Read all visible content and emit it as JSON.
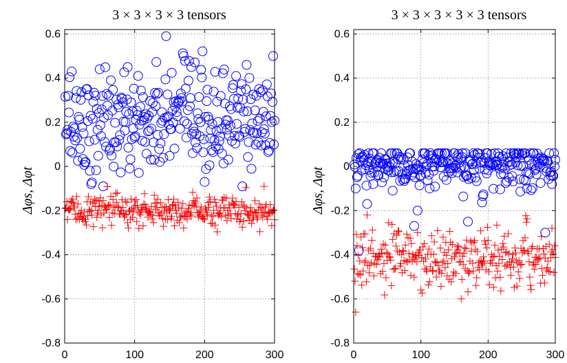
{
  "chart_data": [
    {
      "type": "scatter",
      "title": "3 × 3 × 3 × 3 tensors",
      "ylabel": "Δφs, Δφt",
      "xlim": [
        0,
        300
      ],
      "ylim": [
        -0.8,
        0.62
      ],
      "xticks": [
        0,
        100,
        200,
        300
      ],
      "yticks": [
        -0.8,
        -0.6,
        -0.4,
        -0.2,
        0,
        0.2,
        0.4,
        0.6
      ],
      "xtick_labels": [
        "0",
        "100",
        "200",
        "300"
      ],
      "ytick_labels": [
        "-0.8",
        "-0.6",
        "-0.4",
        "-0.2",
        "0",
        "0.2",
        "0.4",
        "0.6"
      ],
      "grid": true,
      "series": [
        {
          "marker": "circle",
          "color": "#0000ff",
          "n_points": 300,
          "y_center": 0.2,
          "y_spread": 0.12,
          "y_min": -0.09,
          "y_max": 0.59,
          "sample_points": [
            [
              3,
              0.15
            ],
            [
              5,
              0.32
            ],
            [
              10,
              0.43
            ],
            [
              12,
              0.18
            ],
            [
              30,
              0.02
            ],
            [
              38,
              -0.08
            ],
            [
              50,
              0.44
            ],
            [
              65,
              0.08
            ],
            [
              105,
              0.41
            ],
            [
              145,
              0.59
            ],
            [
              170,
              0.5
            ],
            [
              200,
              -0.07
            ],
            [
              260,
              0.46
            ],
            [
              298,
              0.5
            ]
          ]
        },
        {
          "marker": "plus",
          "color": "#ff0000",
          "n_points": 300,
          "y_center": -0.2,
          "y_spread": 0.035,
          "y_min": -0.3,
          "y_max": -0.09,
          "sample_points": [
            [
              3,
              -0.16
            ],
            [
              50,
              -0.18
            ],
            [
              75,
              -0.12
            ],
            [
              150,
              -0.2
            ],
            [
              200,
              -0.24
            ],
            [
              285,
              -0.09
            ],
            [
              298,
              -0.2
            ]
          ]
        }
      ]
    },
    {
      "type": "scatter",
      "title": "3 × 3 × 3 × 3 × 3 tensors",
      "ylabel": "Δφs, Δφt",
      "xlim": [
        0,
        300
      ],
      "ylim": [
        -0.8,
        0.62
      ],
      "xticks": [
        0,
        100,
        200,
        300
      ],
      "yticks": [
        -0.8,
        -0.6,
        -0.4,
        -0.2,
        0,
        0.2,
        0.4,
        0.6
      ],
      "xtick_labels": [
        "0",
        "100",
        "200",
        "300"
      ],
      "ytick_labels": [
        "-0.8",
        "-0.6",
        "-0.4",
        "-0.2",
        "0",
        "0.2",
        "0.4",
        "0.6"
      ],
      "grid": true,
      "series": [
        {
          "marker": "circle",
          "color": "#0000ff",
          "n_points": 300,
          "y_center": 0.0,
          "y_spread": 0.05,
          "y_min": -0.39,
          "y_max": 0.06,
          "sample_points": [
            [
              3,
              -0.1
            ],
            [
              8,
              -0.38
            ],
            [
              20,
              -0.17
            ],
            [
              90,
              -0.27
            ],
            [
              95,
              -0.2
            ],
            [
              170,
              -0.25
            ],
            [
              285,
              -0.3
            ],
            [
              295,
              -0.08
            ],
            [
              300,
              0.03
            ]
          ]
        },
        {
          "marker": "plus",
          "color": "#ff0000",
          "n_points": 300,
          "y_center": -0.42,
          "y_spread": 0.06,
          "y_min": -0.66,
          "y_max": -0.22,
          "sample_points": [
            [
              3,
              -0.66
            ],
            [
              20,
              -0.22
            ],
            [
              95,
              -0.3
            ],
            [
              100,
              -0.56
            ],
            [
              160,
              -0.6
            ],
            [
              295,
              -0.28
            ],
            [
              298,
              -0.48
            ]
          ]
        }
      ]
    }
  ]
}
